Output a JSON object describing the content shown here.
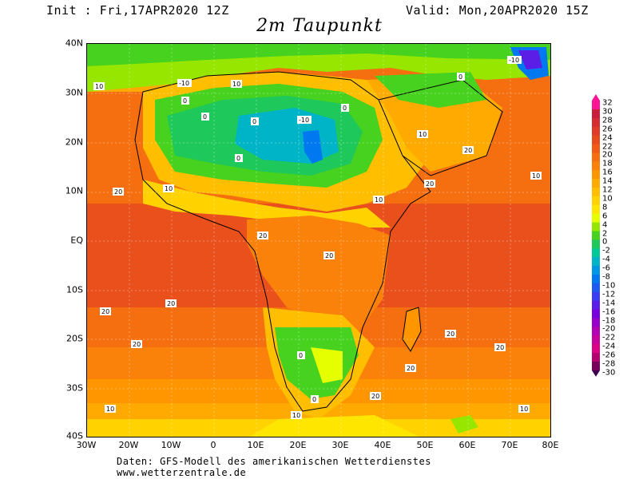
{
  "header": {
    "init": "Init : Fri,17APR2020 12Z",
    "valid": "Valid: Mon,20APR2020 15Z",
    "title": "2m Taupunkt"
  },
  "axes": {
    "lat_labels": [
      "40N",
      "30N",
      "20N",
      "10N",
      "EQ",
      "10S",
      "20S",
      "30S",
      "40S"
    ],
    "lon_labels": [
      "30W",
      "20W",
      "10W",
      "0",
      "10E",
      "20E",
      "30E",
      "40E",
      "50E",
      "60E",
      "70E",
      "80E"
    ]
  },
  "colorbar": {
    "levels": [
      "32",
      "30",
      "28",
      "26",
      "24",
      "22",
      "20",
      "18",
      "16",
      "14",
      "12",
      "10",
      "8",
      "6",
      "4",
      "2",
      "0",
      "-2",
      "-4",
      "-6",
      "-8",
      "-10",
      "-12",
      "-14",
      "-16",
      "-18",
      "-20",
      "-22",
      "-24",
      "-26",
      "-28",
      "-30"
    ],
    "colors": [
      "#ff1493",
      "#c81e3c",
      "#d22d32",
      "#dc3c28",
      "#e64b1e",
      "#f05a14",
      "#f56e0f",
      "#fa820a",
      "#ff9600",
      "#ffaa00",
      "#ffbe00",
      "#ffd200",
      "#ffe600",
      "#e6ff00",
      "#96e600",
      "#46d21e",
      "#1ec85a",
      "#00c896",
      "#00b4c8",
      "#0096e6",
      "#0078f0",
      "#1e5af0",
      "#3c3cf0",
      "#5a1ee6",
      "#7800dc",
      "#9600c8",
      "#b400b4",
      "#c8009b",
      "#dc0082",
      "#b4006e",
      "#78005a"
    ]
  },
  "footer": {
    "line1": "Daten: GFS-Modell des amerikanischen Wetterdienstes",
    "line2": "www.wetterzentrale.de"
  },
  "contour_labels": {
    "minus10": "-10",
    "zero": "0",
    "ten": "10",
    "twenty": "20"
  }
}
